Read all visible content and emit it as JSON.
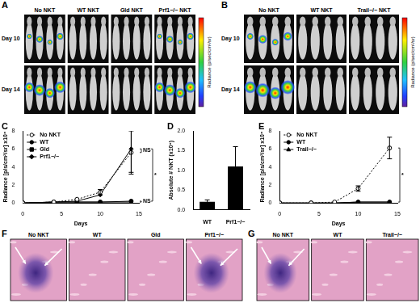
{
  "figure": {
    "A": {
      "letter": "A",
      "groups": [
        "No NKT",
        "WT NKT",
        "Gld NKT",
        "Prf1−/− NKT"
      ],
      "rows": [
        "Day 10",
        "Day 14"
      ],
      "colorbar_title": "Radiance (p/sec/cm²/sr)"
    },
    "B": {
      "letter": "B",
      "groups": [
        "No NKT",
        "WT NKT",
        "Trail−/− NKT"
      ],
      "rows": [
        "Day 10",
        "Day 14"
      ],
      "colorbar_title": "Radiance (p/sec/cm²/sr)"
    },
    "chart_letters": [
      "C",
      "D",
      "E"
    ],
    "F": {
      "letter": "F",
      "panels": [
        "No NKT",
        "WT",
        "Gld",
        "Prf1−/−"
      ]
    },
    "G": {
      "letter": "G",
      "panels": [
        "No NKT",
        "WT",
        "Trail−/−"
      ]
    }
  },
  "chart_data": [
    {
      "type": "line",
      "x_label": "Days",
      "y_label": "Radiance [p/s/cm²/sr] x10⁸",
      "xlim": [
        0,
        15
      ],
      "xticks": [
        0,
        5,
        10,
        15
      ],
      "ylim": [
        0,
        8
      ],
      "yticks": [
        0,
        2,
        4,
        6,
        8
      ],
      "grid": false,
      "legend": "upper left",
      "x": [
        0,
        4,
        7,
        10,
        14
      ],
      "series": [
        {
          "name": "No NKT",
          "color": "#000000",
          "marker": "circle_open",
          "line_style": "dotted",
          "values": [
            0,
            0.1,
            0.4,
            1.2,
            5.6
          ],
          "errors": [
            null,
            null,
            null,
            0.3,
            2.4
          ]
        },
        {
          "name": "WT",
          "color": "#000000",
          "marker": "circle",
          "line_style": "solid",
          "values": [
            0,
            0.1,
            0.1,
            0.1,
            0.2
          ],
          "errors": [
            null,
            null,
            null,
            null,
            null
          ]
        },
        {
          "name": "Gld",
          "color": "#000000",
          "marker": "square",
          "line_style": "solid",
          "values": [
            0,
            0.1,
            0.1,
            0.1,
            0.1
          ],
          "errors": [
            null,
            null,
            null,
            null,
            null
          ]
        },
        {
          "name": "Prf1−/−",
          "color": "#000000",
          "marker": "diamond",
          "line_style": "solid",
          "values": [
            0,
            0.1,
            0.2,
            0.9,
            6.0
          ],
          "errors": [
            null,
            null,
            null,
            null,
            2.6
          ]
        }
      ],
      "annotations": [
        {
          "text": "NS",
          "between": [
            "No NKT",
            "Prf1−/−"
          ]
        },
        {
          "text": "*",
          "between": [
            "Prf1−/−",
            "WT"
          ]
        },
        {
          "text": "NS",
          "between": [
            "WT",
            "Gld"
          ]
        }
      ]
    },
    {
      "type": "bar",
      "y_label": "Absolute # NKT (x10⁶)",
      "categories": [
        "WT",
        "Prf1−/−"
      ],
      "values": [
        0.2,
        1.1
      ],
      "errors": [
        0.05,
        0.5
      ],
      "color": "#000000",
      "grid": false,
      "ylim": [
        0,
        2
      ],
      "yticks": [
        {
          "value": 0,
          "label": "0.0"
        },
        {
          "value": 0.5,
          "label": "0.5"
        },
        {
          "value": 1,
          "label": "1.0"
        },
        {
          "value": 1.5,
          "label": "1.5"
        },
        {
          "value": 2,
          "label": "2.0"
        }
      ]
    },
    {
      "type": "line",
      "x_label": "Days",
      "y_label": "Radiance [p/s/cm²/sr] x10⁸",
      "xlim": [
        0,
        15
      ],
      "xticks": [
        0,
        5,
        10,
        15
      ],
      "ylim": [
        0,
        8
      ],
      "yticks": [
        0,
        2,
        4,
        6,
        8
      ],
      "grid": false,
      "legend": "upper left",
      "x": [
        0,
        4,
        7,
        10,
        14
      ],
      "series": [
        {
          "name": "No NKT",
          "color": "#000000",
          "marker": "circle_open",
          "line_style": "dotted",
          "values": [
            0,
            0,
            0.1,
            1.6,
            6.1
          ],
          "errors": [
            null,
            null,
            null,
            0.3,
            1.2
          ]
        },
        {
          "name": "WT",
          "color": "#000000",
          "marker": "circle",
          "line_style": "solid",
          "values": [
            0,
            0,
            0,
            0.1,
            0.1
          ],
          "errors": [
            null,
            null,
            null,
            null,
            null
          ]
        },
        {
          "name": "Trail−/−",
          "color": "#000000",
          "marker": "triangle",
          "line_style": "solid",
          "values": [
            0,
            0,
            0,
            0.1,
            0.1
          ],
          "errors": [
            null,
            null,
            null,
            null,
            null
          ]
        }
      ],
      "annotations": [
        {
          "text": "*",
          "between": [
            "No NKT",
            "WT"
          ]
        }
      ]
    }
  ]
}
